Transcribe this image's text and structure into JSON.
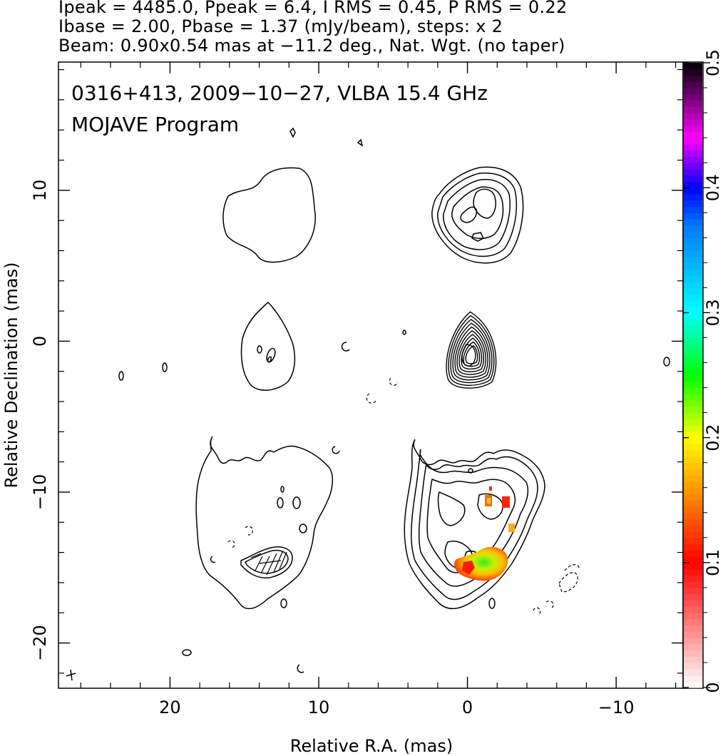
{
  "header": {
    "line1": "Ipeak = 4485.0, Ppeak = 6.4, I RMS = 0.45, P RMS = 0.22",
    "line2": "Ibase = 2.00, Pbase = 1.37 (mJy/beam), steps: x 2",
    "line3": "Beam: 0.90x0.54 mas at −11.2 deg., Nat. Wgt. (no taper)"
  },
  "annotations": {
    "source": "0316+413, 2009−10−27, VLBA 15.4 GHz",
    "program": "MOJAVE Program"
  },
  "chart_data": {
    "type": "heatmap",
    "title": "",
    "xlabel": "Relative R.A. (mas)",
    "ylabel": "Relative Declination (mas)",
    "xlim": [
      27.5,
      -14.5
    ],
    "ylim": [
      -23,
      18.5
    ],
    "x_ticks": [
      20,
      10,
      0,
      -10
    ],
    "x_tick_labels": [
      "20",
      "10",
      "0",
      "−10"
    ],
    "y_ticks": [
      10,
      0,
      -10,
      -20
    ],
    "y_tick_labels": [
      "10",
      "0",
      "−10",
      "−20"
    ],
    "colorbar": {
      "range": [
        0,
        0.5
      ],
      "ticks": [
        0,
        0.1,
        0.2,
        0.3,
        0.4,
        0.5
      ],
      "tick_labels": [
        "0",
        "0.1",
        "0.2",
        "0.3",
        "0.4",
        "0.5"
      ],
      "colors": [
        "#ffffff",
        "#ff0000",
        "#ffff00",
        "#00ff00",
        "#00ffff",
        "#0000ff",
        "#ff00ff",
        "#000000"
      ]
    },
    "series": [
      {
        "name": "",
        "values": [
          {
            "x": 0,
            "y": 0
          }
        ]
      }
    ],
    "panels": [
      {
        "x": 12.5,
        "y": 8,
        "desc": "contours"
      },
      {
        "x": -1.5,
        "y": 8.3,
        "desc": "contours"
      },
      {
        "x": 13.5,
        "y": -0.8,
        "desc": "contours"
      },
      {
        "x": -0.5,
        "y": -0.8,
        "desc": "contours"
      },
      {
        "x": 14,
        "y": -12,
        "desc": "contours"
      },
      {
        "x": -0.5,
        "y": -13,
        "desc": "contours"
      }
    ],
    "polarization_spots": [
      {
        "x": -1.0,
        "y": -14.8,
        "value": 0.22
      },
      {
        "x": -0.2,
        "y": -15.3,
        "value": 0.1
      },
      {
        "x": -1.2,
        "y": -11.2,
        "value": 0.12
      },
      {
        "x": -2.4,
        "y": -11.3,
        "value": 0.08
      },
      {
        "x": -2.7,
        "y": -12.6,
        "value": 0.15
      }
    ],
    "grid": false,
    "legend": "colorbar-right"
  }
}
